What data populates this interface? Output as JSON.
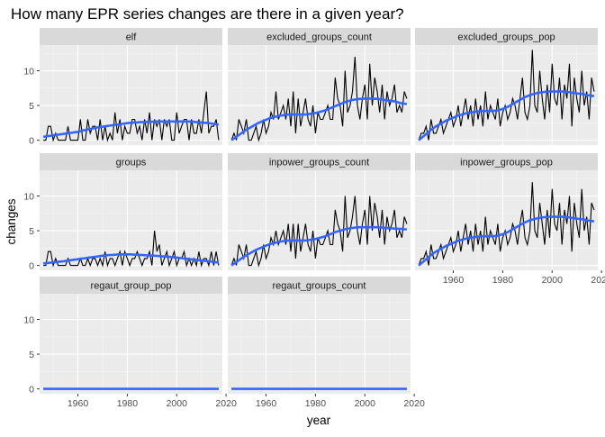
{
  "chart_data": {
    "type": "line",
    "title": "How many EPR series changes are there in a given year?",
    "xlabel": "year",
    "ylabel": "changes",
    "xlim": [
      1944.5,
      2018.5
    ],
    "ylim": [
      -0.7,
      13.7
    ],
    "x_ticks": [
      1960,
      1980,
      2000,
      2020
    ],
    "x_tick_labels": [
      "1960",
      "1980",
      "2000",
      "2020"
    ],
    "y_ticks": [
      0,
      5,
      10
    ],
    "y_tick_labels": [
      "0",
      "5",
      "10"
    ],
    "grid": true,
    "x_start": 1946,
    "years": [
      1946,
      1947,
      1948,
      1949,
      1950,
      1951,
      1952,
      1953,
      1954,
      1955,
      1956,
      1957,
      1958,
      1959,
      1960,
      1961,
      1962,
      1963,
      1964,
      1965,
      1966,
      1967,
      1968,
      1969,
      1970,
      1971,
      1972,
      1973,
      1974,
      1975,
      1976,
      1977,
      1978,
      1979,
      1980,
      1981,
      1982,
      1983,
      1984,
      1985,
      1986,
      1987,
      1988,
      1989,
      1990,
      1991,
      1992,
      1993,
      1994,
      1995,
      1996,
      1997,
      1998,
      1999,
      2000,
      2001,
      2002,
      2003,
      2004,
      2005,
      2006,
      2007,
      2008,
      2009,
      2010,
      2011,
      2012,
      2013,
      2014,
      2015,
      2016,
      2017
    ],
    "smooth_color": "#3366ff",
    "raw_color": "#000000",
    "panel_bg": "#ebebeb",
    "strip_bg": "#d9d9d9",
    "panels": [
      {
        "name": "elf",
        "values": [
          0,
          0,
          2,
          2,
          0,
          1,
          0,
          0,
          0,
          0,
          2,
          0,
          0,
          0,
          0,
          3,
          0,
          0,
          3,
          1,
          2,
          2,
          0,
          3,
          0,
          2,
          0,
          1,
          0,
          4,
          1,
          3,
          0,
          2,
          1,
          1,
          3,
          3,
          1,
          2,
          0,
          3,
          1,
          4,
          0,
          3,
          2,
          3,
          0,
          3,
          2,
          3,
          0,
          0,
          4,
          1,
          2,
          3,
          3,
          0,
          3,
          1,
          1,
          3,
          1,
          4,
          7,
          1,
          2,
          2,
          3,
          0
        ],
        "smooth": [
          0.5,
          0.55,
          0.6,
          0.65,
          0.7,
          0.75,
          0.8,
          0.85,
          0.9,
          0.95,
          1.0,
          1.05,
          1.1,
          1.15,
          1.2,
          1.3,
          1.4,
          1.45,
          1.55,
          1.6,
          1.7,
          1.75,
          1.85,
          1.9,
          1.95,
          2.0,
          2.05,
          2.1,
          2.15,
          2.2,
          2.25,
          2.3,
          2.35,
          2.4,
          2.45,
          2.5,
          2.5,
          2.55,
          2.55,
          2.6,
          2.6,
          2.6,
          2.65,
          2.65,
          2.65,
          2.7,
          2.7,
          2.7,
          2.7,
          2.7,
          2.7,
          2.7,
          2.7,
          2.7,
          2.7,
          2.7,
          2.7,
          2.7,
          2.7,
          2.7,
          2.65,
          2.65,
          2.6,
          2.6,
          2.55,
          2.5,
          2.5,
          2.45,
          2.4,
          2.35,
          2.3,
          2.25
        ]
      },
      {
        "name": "excluded_groups_count",
        "values": [
          0,
          1,
          0,
          3,
          2,
          1,
          3,
          0,
          0,
          1,
          2,
          0,
          1,
          3,
          1,
          2,
          4,
          3,
          7,
          3,
          4,
          5,
          3,
          6,
          2,
          7,
          1,
          6,
          2,
          4,
          6,
          3,
          2,
          5,
          1,
          4,
          3,
          3,
          4,
          5,
          3,
          3,
          9,
          6,
          5,
          2,
          10,
          4,
          5,
          7,
          12,
          5,
          3,
          6,
          8,
          3,
          11,
          5,
          9,
          7,
          4,
          8,
          3,
          7,
          5,
          6,
          8,
          4,
          5,
          4,
          7,
          6
        ],
        "smooth": [
          0.0,
          0.25,
          0.5,
          0.75,
          1.0,
          1.25,
          1.5,
          1.7,
          1.9,
          2.1,
          2.3,
          2.5,
          2.65,
          2.8,
          2.95,
          3.1,
          3.2,
          3.3,
          3.4,
          3.5,
          3.55,
          3.6,
          3.65,
          3.7,
          3.7,
          3.7,
          3.7,
          3.7,
          3.7,
          3.7,
          3.7,
          3.75,
          3.8,
          3.85,
          3.9,
          4.0,
          4.1,
          4.2,
          4.3,
          4.45,
          4.6,
          4.75,
          4.9,
          5.05,
          5.2,
          5.35,
          5.5,
          5.6,
          5.7,
          5.8,
          5.85,
          5.9,
          5.95,
          5.95,
          6.0,
          6.0,
          6.0,
          6.0,
          5.95,
          5.95,
          5.9,
          5.85,
          5.8,
          5.75,
          5.7,
          5.65,
          5.6,
          5.5,
          5.4,
          5.3,
          5.25,
          5.2
        ]
      },
      {
        "name": "excluded_groups_pop",
        "values": [
          0,
          1,
          1,
          2,
          0,
          3,
          1,
          1,
          2,
          3,
          1,
          2,
          3,
          4,
          2,
          3,
          5,
          2,
          4,
          6,
          3,
          5,
          2,
          6,
          3,
          5,
          2,
          7,
          3,
          5,
          4,
          3,
          6,
          2,
          4,
          5,
          3,
          4,
          6,
          5,
          3,
          6,
          9,
          4,
          3,
          5,
          13,
          5,
          4,
          10,
          6,
          3,
          8,
          4,
          11,
          6,
          5,
          9,
          3,
          8,
          6,
          11,
          2,
          9,
          6,
          4,
          10,
          5,
          7,
          3,
          9,
          7
        ],
        "smooth": [
          0.0,
          0.3,
          0.6,
          0.9,
          1.2,
          1.5,
          1.75,
          2.0,
          2.2,
          2.4,
          2.6,
          2.8,
          2.95,
          3.1,
          3.25,
          3.4,
          3.55,
          3.65,
          3.75,
          3.85,
          3.95,
          4.0,
          4.05,
          4.1,
          4.15,
          4.2,
          4.2,
          4.2,
          4.2,
          4.2,
          4.2,
          4.25,
          4.3,
          4.4,
          4.5,
          4.65,
          4.8,
          5.0,
          5.2,
          5.4,
          5.6,
          5.8,
          6.0,
          6.2,
          6.35,
          6.5,
          6.6,
          6.7,
          6.8,
          6.85,
          6.9,
          6.95,
          7.0,
          7.0,
          7.0,
          7.0,
          7.0,
          7.0,
          7.0,
          7.0,
          6.95,
          6.9,
          6.85,
          6.8,
          6.75,
          6.7,
          6.65,
          6.6,
          6.5,
          6.45,
          6.4,
          6.35
        ]
      },
      {
        "name": "groups",
        "values": [
          0,
          0,
          2,
          2,
          0,
          1,
          0,
          0,
          0,
          0,
          1,
          0,
          0,
          0,
          0,
          1,
          0,
          0,
          1,
          0,
          1,
          1,
          0,
          1,
          0,
          2,
          0,
          1,
          1,
          0,
          1,
          2,
          0,
          2,
          1,
          0,
          1,
          1,
          2,
          1,
          0,
          1,
          1,
          2,
          0,
          5,
          2,
          3,
          0,
          1,
          2,
          0,
          1,
          2,
          0,
          1,
          1,
          2,
          0,
          1,
          0,
          1,
          0,
          2,
          0,
          1,
          1,
          0,
          2,
          0,
          2,
          0
        ],
        "smooth": [
          0.3,
          0.33,
          0.36,
          0.4,
          0.44,
          0.48,
          0.52,
          0.56,
          0.6,
          0.65,
          0.7,
          0.75,
          0.8,
          0.85,
          0.9,
          0.95,
          1.0,
          1.05,
          1.1,
          1.15,
          1.2,
          1.25,
          1.3,
          1.35,
          1.4,
          1.45,
          1.48,
          1.5,
          1.52,
          1.55,
          1.58,
          1.6,
          1.6,
          1.6,
          1.6,
          1.6,
          1.58,
          1.56,
          1.54,
          1.52,
          1.5,
          1.48,
          1.46,
          1.44,
          1.42,
          1.4,
          1.38,
          1.35,
          1.32,
          1.29,
          1.26,
          1.23,
          1.2,
          1.17,
          1.13,
          1.09,
          1.05,
          1.0,
          0.96,
          0.92,
          0.88,
          0.84,
          0.8,
          0.76,
          0.72,
          0.68,
          0.64,
          0.6,
          0.55,
          0.5,
          0.45,
          0.4
        ]
      },
      {
        "name": "inpower_groups_count",
        "values": [
          0,
          1,
          0,
          3,
          2,
          1,
          3,
          0,
          0,
          1,
          2,
          0,
          1,
          3,
          1,
          2,
          4,
          3,
          5,
          3,
          4,
          5,
          3,
          6,
          2,
          6,
          1,
          6,
          2,
          4,
          6,
          3,
          2,
          5,
          1,
          4,
          3,
          3,
          4,
          5,
          3,
          3,
          8,
          6,
          5,
          2,
          10,
          4,
          5,
          7,
          10,
          5,
          3,
          6,
          8,
          3,
          10,
          5,
          9,
          7,
          4,
          8,
          3,
          7,
          5,
          6,
          8,
          4,
          5,
          4,
          7,
          6
        ],
        "smooth": [
          0.0,
          0.25,
          0.5,
          0.75,
          1.0,
          1.25,
          1.45,
          1.65,
          1.85,
          2.05,
          2.25,
          2.4,
          2.55,
          2.7,
          2.85,
          3.0,
          3.1,
          3.2,
          3.3,
          3.4,
          3.45,
          3.5,
          3.55,
          3.6,
          3.6,
          3.6,
          3.6,
          3.6,
          3.6,
          3.6,
          3.6,
          3.65,
          3.7,
          3.75,
          3.8,
          3.9,
          4.0,
          4.1,
          4.2,
          4.35,
          4.5,
          4.65,
          4.8,
          4.9,
          5.0,
          5.1,
          5.2,
          5.3,
          5.35,
          5.4,
          5.45,
          5.5,
          5.5,
          5.5,
          5.5,
          5.5,
          5.5,
          5.5,
          5.5,
          5.5,
          5.45,
          5.45,
          5.4,
          5.4,
          5.35,
          5.35,
          5.3,
          5.3,
          5.25,
          5.25,
          5.2,
          5.2
        ]
      },
      {
        "name": "inpower_groups_pop",
        "values": [
          0,
          1,
          1,
          2,
          0,
          3,
          1,
          1,
          2,
          3,
          1,
          2,
          3,
          4,
          2,
          3,
          5,
          2,
          4,
          6,
          3,
          5,
          2,
          6,
          3,
          5,
          2,
          7,
          3,
          5,
          4,
          3,
          6,
          2,
          4,
          5,
          3,
          4,
          6,
          5,
          3,
          6,
          8,
          4,
          3,
          5,
          12,
          5,
          4,
          9,
          6,
          3,
          8,
          4,
          11,
          6,
          5,
          9,
          3,
          8,
          6,
          10,
          2,
          9,
          6,
          4,
          11,
          5,
          7,
          3,
          9,
          8
        ],
        "smooth": [
          0.0,
          0.3,
          0.6,
          0.9,
          1.2,
          1.5,
          1.75,
          2.0,
          2.2,
          2.4,
          2.6,
          2.8,
          2.95,
          3.1,
          3.25,
          3.4,
          3.55,
          3.65,
          3.75,
          3.85,
          3.95,
          4.0,
          4.05,
          4.1,
          4.15,
          4.2,
          4.2,
          4.2,
          4.2,
          4.2,
          4.2,
          4.25,
          4.3,
          4.4,
          4.5,
          4.65,
          4.8,
          5.0,
          5.2,
          5.4,
          5.6,
          5.8,
          6.0,
          6.2,
          6.35,
          6.5,
          6.6,
          6.7,
          6.8,
          6.85,
          6.9,
          6.95,
          7.0,
          7.0,
          7.0,
          7.0,
          7.0,
          7.0,
          7.0,
          7.0,
          6.95,
          6.9,
          6.85,
          6.8,
          6.75,
          6.7,
          6.65,
          6.6,
          6.5,
          6.45,
          6.4,
          6.35
        ]
      },
      {
        "name": "regaut_group_pop",
        "values": [
          0,
          0,
          0,
          0,
          0,
          0,
          0,
          0,
          0,
          0,
          0,
          0,
          0,
          0,
          0,
          0,
          0,
          0,
          0,
          0,
          0,
          0,
          0,
          0,
          0,
          0,
          0,
          0,
          0,
          0,
          0,
          0,
          0,
          0,
          0,
          0,
          0,
          0,
          0,
          0,
          0,
          0,
          0,
          0,
          0,
          0,
          0,
          0,
          0,
          0,
          0,
          0,
          0,
          0,
          0,
          0,
          0,
          0,
          0,
          0,
          0,
          0,
          0,
          0,
          0,
          0,
          0,
          0,
          0,
          0,
          0,
          0
        ],
        "smooth": [
          0,
          0,
          0,
          0,
          0,
          0,
          0,
          0,
          0,
          0,
          0,
          0,
          0,
          0,
          0,
          0,
          0,
          0,
          0,
          0,
          0,
          0,
          0,
          0,
          0,
          0,
          0,
          0,
          0,
          0,
          0,
          0,
          0,
          0,
          0,
          0,
          0,
          0,
          0,
          0,
          0,
          0,
          0,
          0,
          0,
          0,
          0,
          0,
          0,
          0,
          0,
          0,
          0,
          0,
          0,
          0,
          0,
          0,
          0,
          0,
          0,
          0,
          0,
          0,
          0,
          0,
          0,
          0,
          0,
          0,
          0,
          0
        ]
      },
      {
        "name": "regaut_groups_count",
        "values": [
          0,
          0,
          0,
          0,
          0,
          0,
          0,
          0,
          0,
          0,
          0,
          0,
          0,
          0,
          0,
          0,
          0,
          0,
          0,
          0,
          0,
          0,
          0,
          0,
          0,
          0,
          0,
          0,
          0,
          0,
          0,
          0,
          0,
          0,
          0,
          0,
          0,
          0,
          0,
          0,
          0,
          0,
          0,
          0,
          0,
          0,
          0,
          0,
          0,
          0,
          0,
          0,
          0,
          0,
          0,
          0,
          0,
          0,
          0,
          0,
          0,
          0,
          0,
          0,
          0,
          0,
          0,
          0,
          0,
          0,
          0,
          0
        ],
        "smooth": [
          0,
          0,
          0,
          0,
          0,
          0,
          0,
          0,
          0,
          0,
          0,
          0,
          0,
          0,
          0,
          0,
          0,
          0,
          0,
          0,
          0,
          0,
          0,
          0,
          0,
          0,
          0,
          0,
          0,
          0,
          0,
          0,
          0,
          0,
          0,
          0,
          0,
          0,
          0,
          0,
          0,
          0,
          0,
          0,
          0,
          0,
          0,
          0,
          0,
          0,
          0,
          0,
          0,
          0,
          0,
          0,
          0,
          0,
          0,
          0,
          0,
          0,
          0,
          0,
          0,
          0,
          0,
          0,
          0,
          0,
          0,
          0
        ]
      }
    ]
  }
}
